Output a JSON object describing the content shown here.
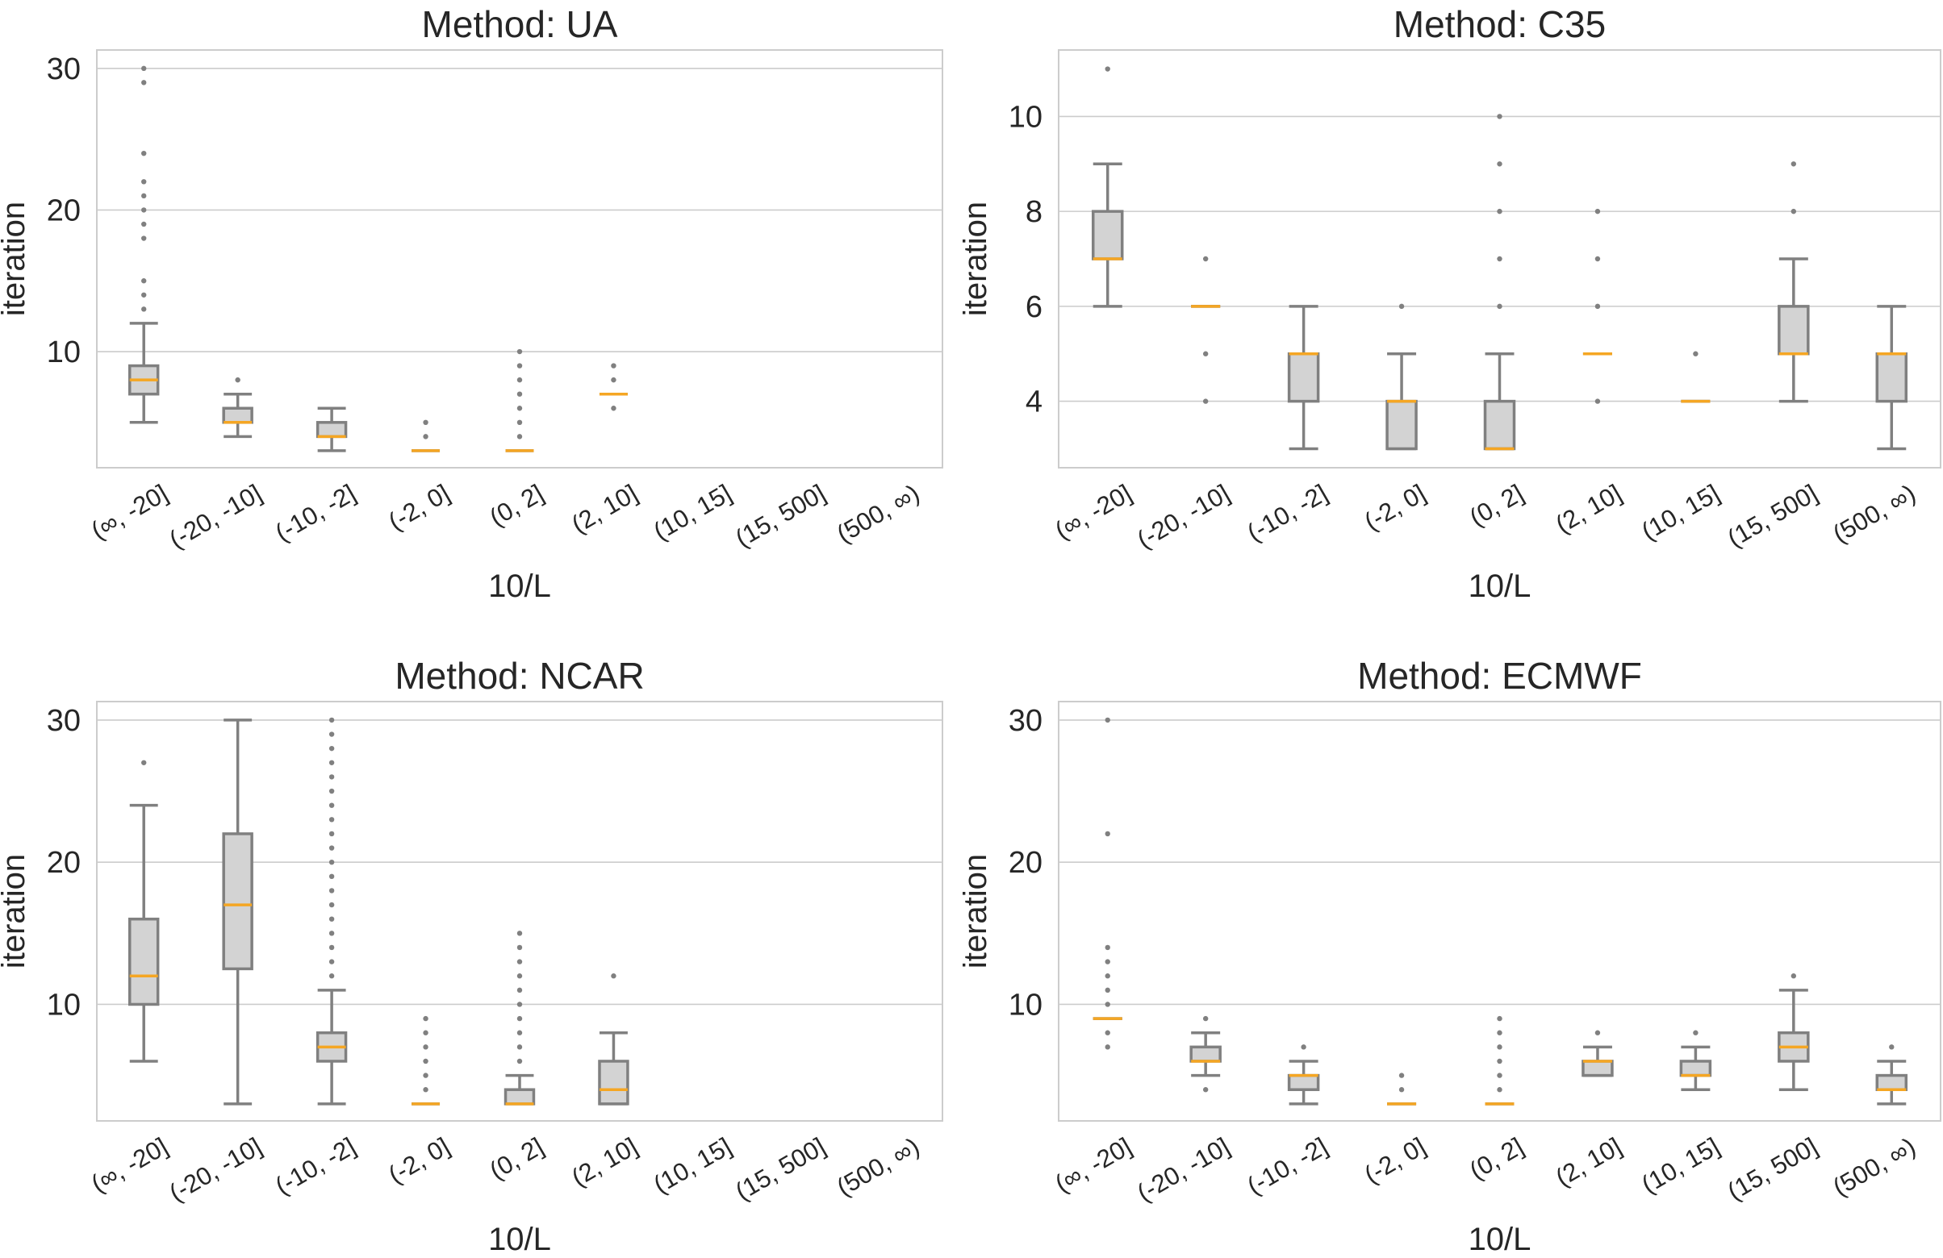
{
  "colors": {
    "box_fill": "#d3d3d3",
    "box_edge": "#808080",
    "median": "#f5a623",
    "grid": "#cccccc",
    "frame": "#cccccc",
    "text": "#262626"
  },
  "chart_data": [
    {
      "type": "boxplot",
      "title": "Method: UA",
      "xlabel": "10/L",
      "ylabel": "iteration",
      "ylim": [
        1.8,
        31.3
      ],
      "yticks": [
        10,
        20,
        30
      ],
      "grid": true,
      "categories": [
        "(∞, -20]",
        "(-20, -10]",
        "(-10, -2]",
        "(-2, 0]",
        "(0, 2]",
        "(2, 10]",
        "(10, 15]",
        "(15, 500]",
        "(500, ∞)"
      ],
      "boxes": [
        {
          "category": "(∞, -20]",
          "whislo": 5,
          "q1": 7,
          "med": 8,
          "q3": 9,
          "whishi": 12,
          "fliers": [
            13,
            14,
            15,
            18,
            19,
            20,
            21,
            22,
            24,
            29,
            30
          ]
        },
        {
          "category": "(-20, -10]",
          "whislo": 4,
          "q1": 5,
          "med": 5,
          "q3": 6,
          "whishi": 7,
          "fliers": [
            8
          ]
        },
        {
          "category": "(-10, -2]",
          "whislo": 3,
          "q1": 4,
          "med": 4,
          "q3": 5,
          "whishi": 6,
          "fliers": []
        },
        {
          "category": "(-2, 0]",
          "whislo": 3,
          "q1": 3,
          "med": 3,
          "q3": 3,
          "whishi": 3,
          "fliers": [
            4,
            5
          ]
        },
        {
          "category": "(0, 2]",
          "whislo": 3,
          "q1": 3,
          "med": 3,
          "q3": 3,
          "whishi": 3,
          "fliers": [
            4,
            5,
            6,
            7,
            8,
            9,
            10
          ]
        },
        {
          "category": "(2, 10]",
          "whislo": 7,
          "q1": 7,
          "med": 7,
          "q3": 7,
          "whishi": 7,
          "fliers": [
            6,
            8,
            9
          ]
        },
        {
          "category": "(10, 15]",
          "empty": true
        },
        {
          "category": "(15, 500]",
          "empty": true
        },
        {
          "category": "(500, ∞)",
          "empty": true
        }
      ]
    },
    {
      "type": "boxplot",
      "title": "Method: C35",
      "xlabel": "10/L",
      "ylabel": "iteration",
      "ylim": [
        2.6,
        11.4
      ],
      "yticks": [
        4,
        6,
        8,
        10
      ],
      "grid": true,
      "categories": [
        "(∞, -20]",
        "(-20, -10]",
        "(-10, -2]",
        "(-2, 0]",
        "(0, 2]",
        "(2, 10]",
        "(10, 15]",
        "(15, 500]",
        "(500, ∞)"
      ],
      "boxes": [
        {
          "category": "(∞, -20]",
          "whislo": 6,
          "q1": 7,
          "med": 7,
          "q3": 8,
          "whishi": 9,
          "fliers": [
            11
          ]
        },
        {
          "category": "(-20, -10]",
          "whislo": 6,
          "q1": 6,
          "med": 6,
          "q3": 6,
          "whishi": 6,
          "fliers": [
            4,
            5,
            7
          ]
        },
        {
          "category": "(-10, -2]",
          "whislo": 3,
          "q1": 4,
          "med": 5,
          "q3": 5,
          "whishi": 6,
          "fliers": []
        },
        {
          "category": "(-2, 0]",
          "whislo": 3,
          "q1": 3,
          "med": 4,
          "q3": 4,
          "whishi": 5,
          "fliers": [
            6
          ]
        },
        {
          "category": "(0, 2]",
          "whislo": 3,
          "q1": 3,
          "med": 3,
          "q3": 4,
          "whishi": 5,
          "fliers": [
            6,
            7,
            8,
            9,
            10
          ]
        },
        {
          "category": "(2, 10]",
          "whislo": 5,
          "q1": 5,
          "med": 5,
          "q3": 5,
          "whishi": 5,
          "fliers": [
            4,
            6,
            7,
            8
          ]
        },
        {
          "category": "(10, 15]",
          "whislo": 4,
          "q1": 4,
          "med": 4,
          "q3": 4,
          "whishi": 4,
          "fliers": [
            5
          ]
        },
        {
          "category": "(15, 500]",
          "whislo": 4,
          "q1": 5,
          "med": 5,
          "q3": 6,
          "whishi": 7,
          "fliers": [
            8,
            9
          ]
        },
        {
          "category": "(500, ∞)",
          "whislo": 3,
          "q1": 4,
          "med": 5,
          "q3": 5,
          "whishi": 6,
          "fliers": []
        }
      ]
    },
    {
      "type": "boxplot",
      "title": "Method: NCAR",
      "xlabel": "10/L",
      "ylabel": "iteration",
      "ylim": [
        1.8,
        31.3
      ],
      "yticks": [
        10,
        20,
        30
      ],
      "grid": true,
      "categories": [
        "(∞, -20]",
        "(-20, -10]",
        "(-10, -2]",
        "(-2, 0]",
        "(0, 2]",
        "(2, 10]",
        "(10, 15]",
        "(15, 500]",
        "(500, ∞)"
      ],
      "boxes": [
        {
          "category": "(∞, -20]",
          "whislo": 6,
          "q1": 10,
          "med": 12,
          "q3": 16,
          "whishi": 24,
          "fliers": [
            27
          ]
        },
        {
          "category": "(-20, -10]",
          "whislo": 3,
          "q1": 12.5,
          "med": 17,
          "q3": 22,
          "whishi": 30,
          "fliers": []
        },
        {
          "category": "(-10, -2]",
          "whislo": 3,
          "q1": 6,
          "med": 7,
          "q3": 8,
          "whishi": 11,
          "fliers": [
            12,
            13,
            14,
            15,
            16,
            17,
            18,
            19,
            20,
            21,
            22,
            23,
            24,
            25,
            26,
            27,
            28,
            29,
            30
          ]
        },
        {
          "category": "(-2, 0]",
          "whislo": 3,
          "q1": 3,
          "med": 3,
          "q3": 3,
          "whishi": 3,
          "fliers": [
            4,
            5,
            6,
            7,
            8,
            9
          ]
        },
        {
          "category": "(0, 2]",
          "whislo": 3,
          "q1": 3,
          "med": 3,
          "q3": 4,
          "whishi": 5,
          "fliers": [
            6,
            7,
            8,
            9,
            10,
            11,
            12,
            13,
            14,
            15
          ]
        },
        {
          "category": "(2, 10]",
          "whislo": 3,
          "q1": 3,
          "med": 4,
          "q3": 6,
          "whishi": 8,
          "fliers": [
            12
          ]
        },
        {
          "category": "(10, 15]",
          "empty": true
        },
        {
          "category": "(15, 500]",
          "empty": true
        },
        {
          "category": "(500, ∞)",
          "empty": true
        }
      ]
    },
    {
      "type": "boxplot",
      "title": "Method: ECMWF",
      "xlabel": "10/L",
      "ylabel": "iteration",
      "ylim": [
        1.8,
        31.3
      ],
      "yticks": [
        10,
        20,
        30
      ],
      "grid": true,
      "categories": [
        "(∞, -20]",
        "(-20, -10]",
        "(-10, -2]",
        "(-2, 0]",
        "(0, 2]",
        "(2, 10]",
        "(10, 15]",
        "(15, 500]",
        "(500, ∞)"
      ],
      "boxes": [
        {
          "category": "(∞, -20]",
          "whislo": 9,
          "q1": 9,
          "med": 9,
          "q3": 9,
          "whishi": 9,
          "fliers": [
            7,
            8,
            10,
            11,
            12,
            13,
            14,
            22,
            30
          ]
        },
        {
          "category": "(-20, -10]",
          "whislo": 5,
          "q1": 6,
          "med": 6,
          "q3": 7,
          "whishi": 8,
          "fliers": [
            4,
            9
          ]
        },
        {
          "category": "(-10, -2]",
          "whislo": 3,
          "q1": 4,
          "med": 5,
          "q3": 5,
          "whishi": 6,
          "fliers": [
            7
          ]
        },
        {
          "category": "(-2, 0]",
          "whislo": 3,
          "q1": 3,
          "med": 3,
          "q3": 3,
          "whishi": 3,
          "fliers": [
            4,
            5
          ]
        },
        {
          "category": "(0, 2]",
          "whislo": 3,
          "q1": 3,
          "med": 3,
          "q3": 3,
          "whishi": 3,
          "fliers": [
            4,
            5,
            6,
            7,
            8,
            9
          ]
        },
        {
          "category": "(2, 10]",
          "whislo": 5,
          "q1": 5,
          "med": 6,
          "q3": 6,
          "whishi": 7,
          "fliers": [
            8
          ]
        },
        {
          "category": "(10, 15]",
          "whislo": 4,
          "q1": 5,
          "med": 5,
          "q3": 6,
          "whishi": 7,
          "fliers": [
            8
          ]
        },
        {
          "category": "(15, 500]",
          "whislo": 4,
          "q1": 6,
          "med": 7,
          "q3": 8,
          "whishi": 11,
          "fliers": [
            12
          ]
        },
        {
          "category": "(500, ∞)",
          "whislo": 3,
          "q1": 4,
          "med": 4,
          "q3": 5,
          "whishi": 6,
          "fliers": [
            7
          ]
        }
      ]
    }
  ]
}
